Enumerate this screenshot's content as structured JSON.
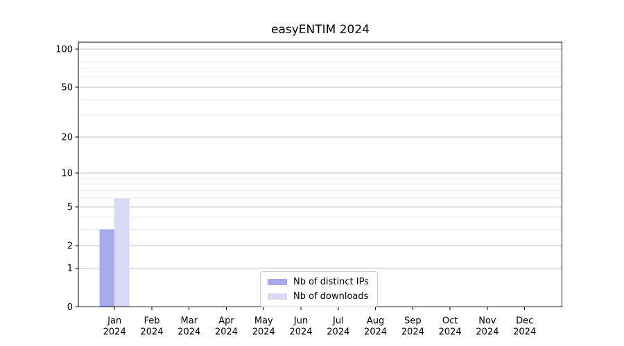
{
  "chart_data": {
    "type": "bar",
    "title": "easyENTIM 2024",
    "x": {
      "months": [
        "Jan",
        "Feb",
        "Mar",
        "Apr",
        "May",
        "Jun",
        "Jul",
        "Aug",
        "Sep",
        "Oct",
        "Nov",
        "Dec"
      ],
      "year": "2024"
    },
    "categories": [
      "Jan 2024",
      "Feb 2024",
      "Mar 2024",
      "Apr 2024",
      "May 2024",
      "Jun 2024",
      "Jul 2024",
      "Aug 2024",
      "Sep 2024",
      "Oct 2024",
      "Nov 2024",
      "Dec 2024"
    ],
    "series": [
      {
        "name": "Nb of distinct IPs",
        "color": "#a9a9ef",
        "values": [
          3,
          0,
          0,
          0,
          0,
          0,
          0,
          0,
          0,
          0,
          0,
          0
        ]
      },
      {
        "name": "Nb of downloads",
        "color": "#d9d9f6",
        "values": [
          6,
          0,
          0,
          0,
          0,
          0,
          0,
          0,
          0,
          0,
          0,
          0
        ]
      }
    ],
    "y_axis": {
      "scale": "log1p",
      "ticks": [
        0,
        1,
        2,
        5,
        10,
        20,
        50,
        100
      ],
      "minor_gridlines": [
        3,
        4,
        6,
        7,
        8,
        9,
        30,
        40,
        60,
        70,
        80,
        90
      ],
      "ylim": [
        0,
        113
      ]
    },
    "grid": true,
    "legend_position": "lower center",
    "colors": {
      "major_grid": "#c3c3c3",
      "minor_grid": "#ebebeb",
      "axis": "#000000",
      "text": "#000000"
    }
  }
}
